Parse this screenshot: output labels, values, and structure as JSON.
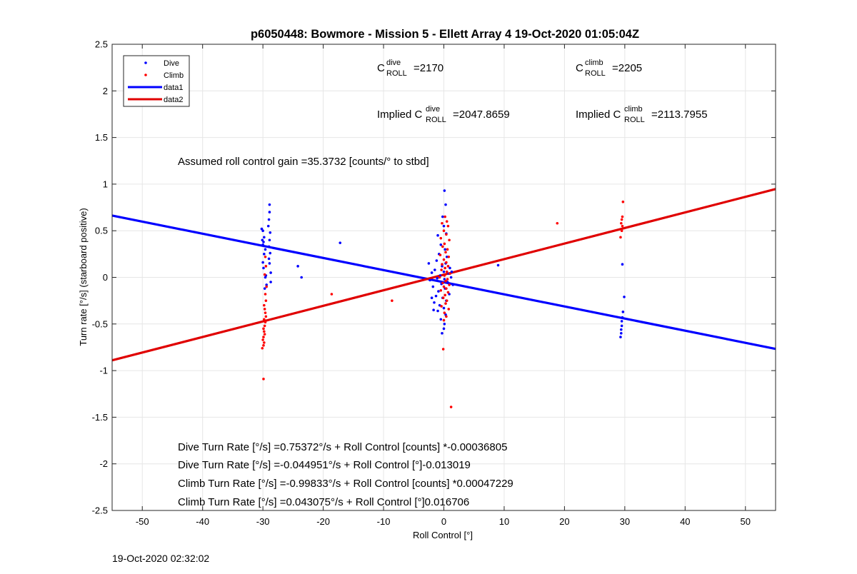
{
  "chart_data": {
    "type": "scatter",
    "title": "p6050448: Bowmore - Mission 5 - Ellett Array 4 19-Oct-2020 01:05:04Z",
    "xlabel": "Roll Control [°]",
    "ylabel": "Turn rate [°/s] (starboard positive)",
    "xlim": [
      -55,
      55
    ],
    "ylim": [
      -2.5,
      2.5
    ],
    "xticks": [
      -50,
      -40,
      -30,
      -20,
      -10,
      0,
      10,
      20,
      30,
      40,
      50
    ],
    "yticks": [
      -2.5,
      -2,
      -1.5,
      -1,
      -0.5,
      0,
      0.5,
      1,
      1.5,
      2,
      2.5
    ],
    "grid": true,
    "legend_position": "top-left",
    "series": [
      {
        "name": "Dive",
        "kind": "points",
        "color": "#0000ff",
        "points": [
          [
            -30.2,
            0.52
          ],
          [
            -30.0,
            0.5
          ],
          [
            -29.8,
            0.43
          ],
          [
            -30.1,
            0.4
          ],
          [
            -29.9,
            0.38
          ],
          [
            -30.0,
            0.35
          ],
          [
            -29.6,
            0.3
          ],
          [
            -29.8,
            0.25
          ],
          [
            -30.0,
            0.16
          ],
          [
            -29.9,
            0.1
          ],
          [
            -29.5,
            0.02
          ],
          [
            -29.6,
            0.0
          ],
          [
            -29.4,
            -0.08
          ],
          [
            -29.7,
            -0.12
          ],
          [
            -28.9,
            0.78
          ],
          [
            -28.9,
            0.7
          ],
          [
            -29.0,
            0.62
          ],
          [
            -29.1,
            0.55
          ],
          [
            -28.8,
            0.48
          ],
          [
            -28.9,
            0.4
          ],
          [
            -29.0,
            0.33
          ],
          [
            -28.8,
            0.26
          ],
          [
            -29.0,
            0.2
          ],
          [
            -28.9,
            0.15
          ],
          [
            -28.7,
            0.05
          ],
          [
            -28.7,
            -0.05
          ],
          [
            -24.2,
            0.12
          ],
          [
            -23.6,
            0.0
          ],
          [
            -17.2,
            0.37
          ],
          [
            0.1,
            0.93
          ],
          [
            0.3,
            0.78
          ],
          [
            -0.2,
            0.65
          ],
          [
            0.0,
            0.55
          ],
          [
            -1.0,
            0.45
          ],
          [
            0.4,
            0.47
          ],
          [
            -0.5,
            0.35
          ],
          [
            0.2,
            0.3
          ],
          [
            -0.8,
            0.25
          ],
          [
            0.5,
            0.22
          ],
          [
            -1.2,
            0.18
          ],
          [
            0.3,
            0.15
          ],
          [
            -0.3,
            0.12
          ],
          [
            1.0,
            0.1
          ],
          [
            -1.5,
            0.08
          ],
          [
            0.0,
            0.06
          ],
          [
            -2.0,
            0.05
          ],
          [
            0.8,
            0.04
          ],
          [
            -0.6,
            0.02
          ],
          [
            1.2,
            0.0
          ],
          [
            -1.1,
            -0.01
          ],
          [
            0.1,
            -0.02
          ],
          [
            -2.3,
            -0.03
          ],
          [
            0.6,
            -0.05
          ],
          [
            -0.4,
            -0.07
          ],
          [
            1.5,
            -0.08
          ],
          [
            -1.8,
            -0.1
          ],
          [
            0.2,
            -0.12
          ],
          [
            -0.9,
            -0.15
          ],
          [
            0.9,
            -0.18
          ],
          [
            -1.3,
            -0.2
          ],
          [
            -0.2,
            -0.22
          ],
          [
            0.4,
            -0.25
          ],
          [
            -1.6,
            -0.27
          ],
          [
            -0.7,
            -0.3
          ],
          [
            0.0,
            -0.33
          ],
          [
            -1.0,
            -0.36
          ],
          [
            0.3,
            -0.4
          ],
          [
            -0.5,
            -0.45
          ],
          [
            0.1,
            -0.5
          ],
          [
            0.0,
            -0.55
          ],
          [
            -0.3,
            -0.6
          ],
          [
            -2.0,
            -0.22
          ],
          [
            -1.7,
            -0.35
          ],
          [
            1.3,
            0.06
          ],
          [
            -2.5,
            0.15
          ],
          [
            9.0,
            0.13
          ],
          [
            29.6,
            0.14
          ],
          [
            29.9,
            -0.21
          ],
          [
            29.7,
            -0.37
          ],
          [
            29.6,
            -0.43
          ],
          [
            29.5,
            -0.47
          ],
          [
            29.5,
            -0.52
          ],
          [
            29.4,
            -0.56
          ],
          [
            29.4,
            -0.6
          ],
          [
            29.3,
            -0.64
          ]
        ]
      },
      {
        "name": "Climb",
        "kind": "points",
        "color": "#ff0000",
        "points": [
          [
            -29.6,
            0.22
          ],
          [
            -29.5,
            0.12
          ],
          [
            -29.7,
            0.03
          ],
          [
            -29.4,
            -0.1
          ],
          [
            -29.6,
            -0.18
          ],
          [
            -29.5,
            -0.25
          ],
          [
            -29.8,
            -0.3
          ],
          [
            -29.7,
            -0.34
          ],
          [
            -29.6,
            -0.38
          ],
          [
            -29.5,
            -0.42
          ],
          [
            -29.8,
            -0.45
          ],
          [
            -29.6,
            -0.48
          ],
          [
            -29.7,
            -0.52
          ],
          [
            -29.9,
            -0.55
          ],
          [
            -29.8,
            -0.58
          ],
          [
            -29.7,
            -0.61
          ],
          [
            -29.9,
            -0.64
          ],
          [
            -30.0,
            -0.67
          ],
          [
            -29.8,
            -0.7
          ],
          [
            -29.9,
            -0.73
          ],
          [
            -30.1,
            -0.76
          ],
          [
            -29.9,
            -1.09
          ],
          [
            -18.6,
            -0.18
          ],
          [
            -8.6,
            -0.25
          ],
          [
            0.2,
            0.65
          ],
          [
            0.5,
            0.6
          ],
          [
            -0.3,
            0.58
          ],
          [
            0.7,
            0.55
          ],
          [
            0.0,
            0.5
          ],
          [
            0.4,
            0.46
          ],
          [
            -0.5,
            0.42
          ],
          [
            0.9,
            0.4
          ],
          [
            0.1,
            0.36
          ],
          [
            -0.2,
            0.33
          ],
          [
            0.6,
            0.3
          ],
          [
            0.3,
            0.27
          ],
          [
            -0.6,
            0.24
          ],
          [
            0.8,
            0.22
          ],
          [
            0.0,
            0.19
          ],
          [
            0.4,
            0.16
          ],
          [
            -0.3,
            0.14
          ],
          [
            0.7,
            0.12
          ],
          [
            0.2,
            0.1
          ],
          [
            -0.4,
            0.08
          ],
          [
            0.5,
            0.06
          ],
          [
            1.0,
            0.04
          ],
          [
            0.1,
            0.02
          ],
          [
            -0.7,
            0.0
          ],
          [
            0.6,
            -0.02
          ],
          [
            0.3,
            -0.04
          ],
          [
            -0.2,
            -0.06
          ],
          [
            0.9,
            -0.08
          ],
          [
            0.0,
            -0.1
          ],
          [
            0.4,
            -0.12
          ],
          [
            -0.5,
            -0.14
          ],
          [
            0.7,
            -0.16
          ],
          [
            0.2,
            -0.19
          ],
          [
            -0.1,
            -0.22
          ],
          [
            0.5,
            -0.25
          ],
          [
            0.3,
            -0.28
          ],
          [
            -0.4,
            -0.31
          ],
          [
            0.8,
            -0.34
          ],
          [
            0.1,
            -0.38
          ],
          [
            0.4,
            -0.42
          ],
          [
            0.0,
            -0.46
          ],
          [
            -0.1,
            -0.77
          ],
          [
            1.2,
            -1.39
          ],
          [
            18.8,
            0.58
          ],
          [
            29.7,
            0.81
          ],
          [
            29.6,
            0.65
          ],
          [
            29.5,
            0.62
          ],
          [
            29.4,
            0.58
          ],
          [
            29.6,
            0.55
          ],
          [
            29.5,
            0.5
          ],
          [
            29.3,
            0.43
          ]
        ]
      },
      {
        "name": "data1",
        "kind": "line",
        "color": "#0000ff",
        "x": [
          -55,
          55
        ],
        "y": [
          0.663,
          -0.767
        ]
      },
      {
        "name": "data2",
        "kind": "line",
        "color": "#e00000",
        "x": [
          -55,
          55
        ],
        "y": [
          -0.89,
          0.947
        ]
      }
    ],
    "annotations": {
      "c_roll_dive": {
        "base": "C",
        "sup": "dive",
        "sub": "ROLL",
        "value": "=2170"
      },
      "c_roll_climb": {
        "base": "C",
        "sup": "climb",
        "sub": "ROLL",
        "value": "=2205"
      },
      "implied_dive": {
        "prefix": "Implied C",
        "sup": "dive",
        "sub": "ROLL",
        "value": "=2047.8659"
      },
      "implied_climb": {
        "prefix": "Implied C",
        "sup": "climb",
        "sub": "ROLL",
        "value": "=2113.7955"
      },
      "gain": "Assumed roll control gain =35.3732 [counts/° to stbd]",
      "eq_lines": [
        "Dive Turn Rate [°/s] =0.75372°/s + Roll Control [counts] *-0.00036805",
        "Dive Turn Rate [°/s] =-0.044951°/s + Roll Control [°]-0.013019",
        "Climb Turn Rate [°/s] =-0.99833°/s + Roll Control [counts] *0.00047229",
        "Climb Turn Rate [°/s] =0.043075°/s + Roll Control [°]0.016706"
      ]
    }
  },
  "footer_timestamp": "19-Oct-2020 02:32:02"
}
